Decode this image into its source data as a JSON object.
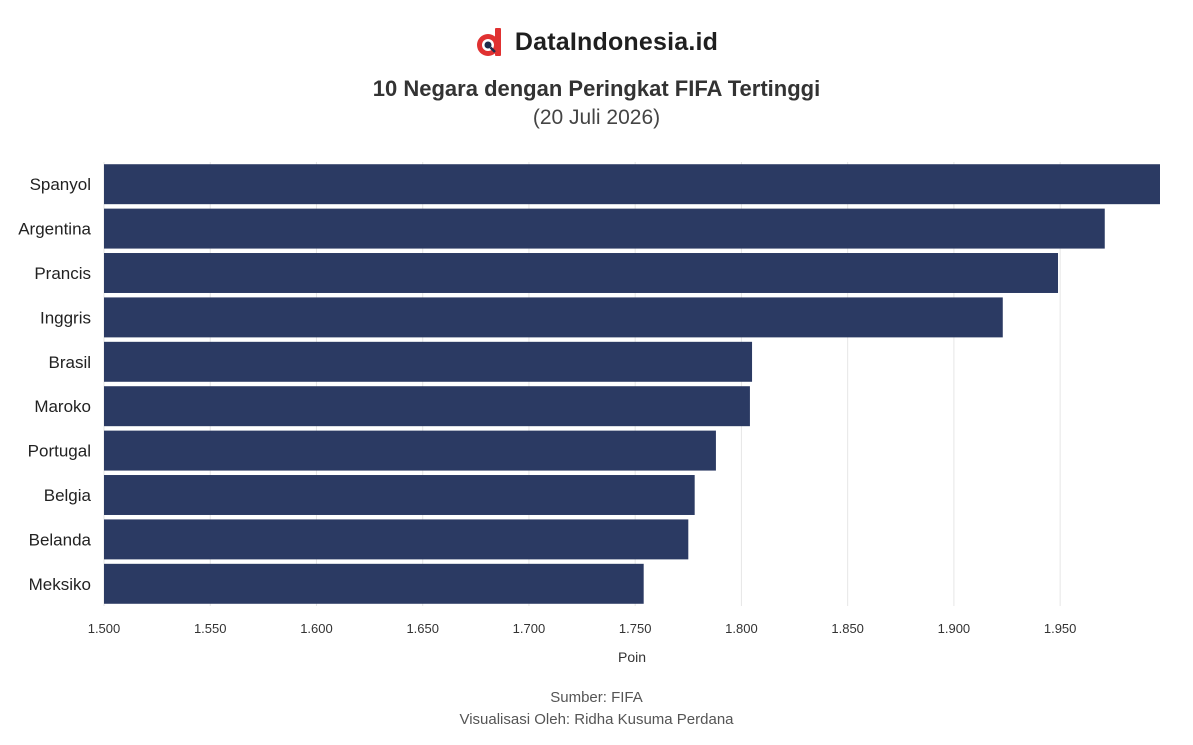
{
  "brand": {
    "name": "DataIndonesia.id",
    "logo_icon": "dataindonesia-logo-icon",
    "logo_color": "#e03131"
  },
  "chart_data": {
    "type": "bar",
    "orientation": "horizontal",
    "title": "10 Negara dengan Peringkat FIFA Tertinggi",
    "subtitle": "(20 Juli 2026)",
    "xlabel": "Poin",
    "ylabel": "",
    "categories": [
      "Spanyol",
      "Argentina",
      "Prancis",
      "Inggris",
      "Brasil",
      "Maroko",
      "Portugal",
      "Belgia",
      "Belanda",
      "Meksiko"
    ],
    "values": [
      1997,
      1971,
      1949,
      1923,
      1805,
      1804,
      1788,
      1778,
      1775,
      1754
    ],
    "xlim": [
      1500,
      1997
    ],
    "xticks": [
      1500,
      1550,
      1600,
      1650,
      1700,
      1750,
      1800,
      1850,
      1900,
      1950
    ],
    "xtick_labels": [
      "1.500",
      "1.550",
      "1.600",
      "1.650",
      "1.700",
      "1.750",
      "1.800",
      "1.850",
      "1.900",
      "1.950"
    ],
    "bar_color": "#2b3a63",
    "grid": true,
    "legend": "none"
  },
  "footer": {
    "source": "Sumber: FIFA",
    "credit": "Visualisasi Oleh: Ridha Kusuma Perdana"
  }
}
